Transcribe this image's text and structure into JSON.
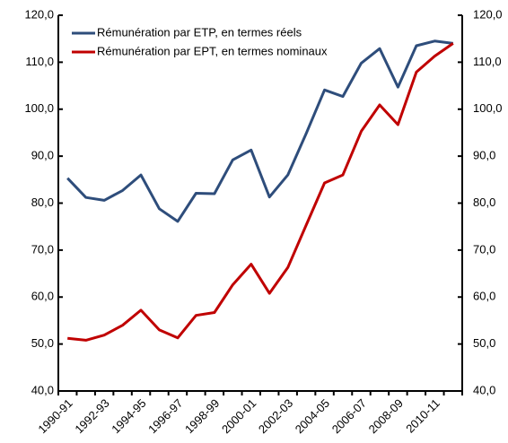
{
  "chart_data": {
    "type": "line",
    "categories": [
      "1990-91",
      null,
      "1992-93",
      null,
      "1994-95",
      null,
      "1996-97",
      null,
      "1998-99",
      null,
      "2000-01",
      null,
      "2002-03",
      null,
      "2004-05",
      null,
      "2006-07",
      null,
      "2008-09",
      null,
      "2010-11",
      null
    ],
    "series": [
      {
        "name": "Rémunération par ETP, en termes réels",
        "color": "#2e4d7b",
        "values": [
          85.3,
          81.2,
          80.6,
          82.7,
          86.0,
          78.8,
          76.1,
          82.1,
          82.0,
          89.2,
          91.3,
          81.3,
          86.0,
          94.8,
          104.1,
          102.7,
          109.8,
          112.9,
          104.7,
          113.5,
          114.5,
          114.0
        ]
      },
      {
        "name": "Rémunération par EPT, en termes nominaux",
        "color": "#c00000",
        "values": [
          51.2,
          50.8,
          51.9,
          54.0,
          57.2,
          53.0,
          51.3,
          56.1,
          56.7,
          62.6,
          67.0,
          60.8,
          66.3,
          75.3,
          84.3,
          86.0,
          95.3,
          100.9,
          96.7,
          107.9,
          111.3,
          114.0
        ]
      }
    ],
    "ylim": [
      40,
      120
    ],
    "yticks": [
      {
        "value": 40,
        "label": "40,0"
      },
      {
        "value": 50,
        "label": "50,0"
      },
      {
        "value": 60,
        "label": "60,0"
      },
      {
        "value": 70,
        "label": "70,0"
      },
      {
        "value": 80,
        "label": "80,0"
      },
      {
        "value": 90,
        "label": "90,0"
      },
      {
        "value": 100,
        "label": "100,0"
      },
      {
        "value": 110,
        "label": "110,0"
      },
      {
        "value": 120,
        "label": "120,0"
      }
    ],
    "y2lim": [
      40,
      120
    ],
    "y2ticks": [
      {
        "value": 40,
        "label": "40,0"
      },
      {
        "value": 50,
        "label": "50,0"
      },
      {
        "value": 60,
        "label": "60,0"
      },
      {
        "value": 70,
        "label": "70,0"
      },
      {
        "value": 80,
        "label": "80,0"
      },
      {
        "value": 90,
        "label": "90,0"
      },
      {
        "value": 100,
        "label": "100,0"
      },
      {
        "value": 110,
        "label": "110,0"
      },
      {
        "value": 120,
        "label": "120,0"
      }
    ],
    "grid": false,
    "legend": "upper left"
  }
}
